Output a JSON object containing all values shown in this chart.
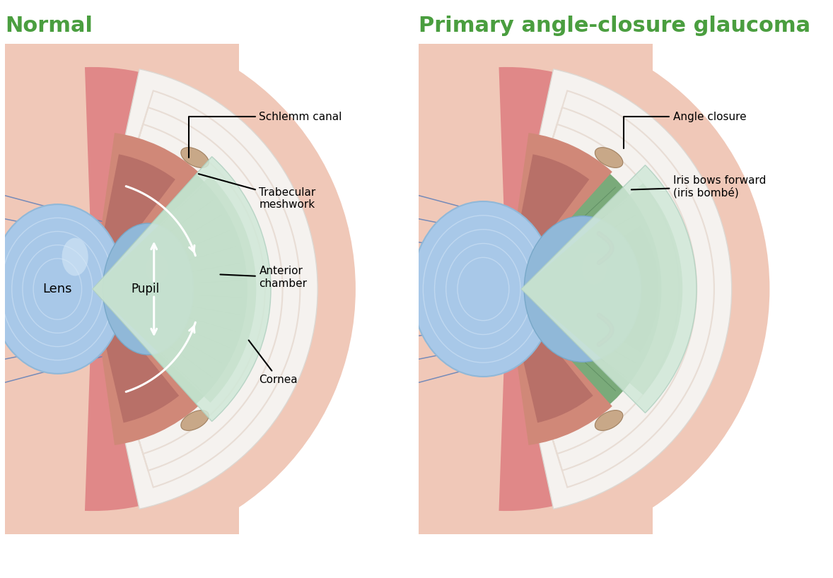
{
  "title_left": "Normal",
  "title_right": "Primary angle-closure glaucoma",
  "title_color": "#4a9e3f",
  "title_fontsize": 22,
  "bg_color": "#ffffff",
  "labels_left": {
    "schlemm": "Schlemm canal",
    "trabecular": "Trabecular\nmeshwork",
    "anterior": "Anterior\nchamber",
    "cornea": "Cornea",
    "lens": "Lens",
    "pupil": "Pupil"
  },
  "labels_right": {
    "angle_closure": "Angle closure",
    "iris_bows": "Iris bows forward\n(iris bombé)"
  },
  "colors": {
    "outer_pink": "#f0c8b8",
    "tissue_pink": "#e89090",
    "sclera_white": "#f2eeea",
    "sclera_edge": "#ddd8d2",
    "sclera_inner_edge": "#e8ddd5",
    "iris_green": "#7aaa7a",
    "iris_dark_green": "#5a8a62",
    "iris_line_green": "#4a7a52",
    "ciliary_pink": "#d08878",
    "ciliary_dark": "#b87068",
    "schlemm_fill": "#c8a888",
    "schlemm_edge": "#a08060",
    "lens_blue": "#a8c8e8",
    "lens_edge": "#90b8d8",
    "lens_ring": "#c0d8f0",
    "lens_highlight": "#d8eaf8",
    "pupil_blue": "#90b8d8",
    "pupil_edge": "#78a8c8",
    "pupil_highlight": "#b8d5e8",
    "cornea_outer": "#d0e8d8",
    "cornea_edge": "#b0d0c0",
    "cornea_inner": "#c5e0cc",
    "blue_lines": "#6080b8",
    "purple_vessel": "#8050a0",
    "arrow_white": "#ffffff",
    "arrow_black": "#000000",
    "closure_green": "#4a7050"
  }
}
